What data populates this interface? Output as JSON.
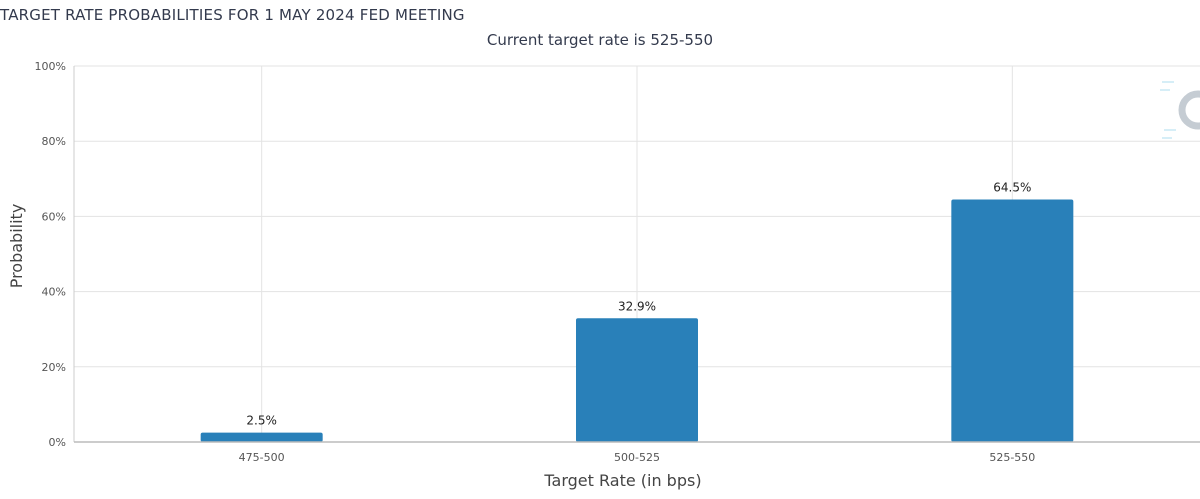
{
  "chart_data": {
    "type": "bar",
    "title": "TARGET RATE PROBABILITIES FOR 1 MAY 2024 FED MEETING",
    "subtitle": "Current target rate is 525-550",
    "xlabel": "Target Rate (in bps)",
    "ylabel": "Probability",
    "categories": [
      "475-500",
      "500-525",
      "525-550"
    ],
    "values": [
      2.5,
      32.9,
      64.5
    ],
    "data_labels": [
      "2.5%",
      "32.9%",
      "64.5%"
    ],
    "ylim": [
      0,
      100
    ],
    "yticks": [
      0,
      20,
      40,
      60,
      80,
      100
    ],
    "ytick_labels": [
      "0%",
      "20%",
      "40%",
      "60%",
      "80%",
      "100%"
    ],
    "grid": true,
    "bar_color": "#2980b9"
  }
}
